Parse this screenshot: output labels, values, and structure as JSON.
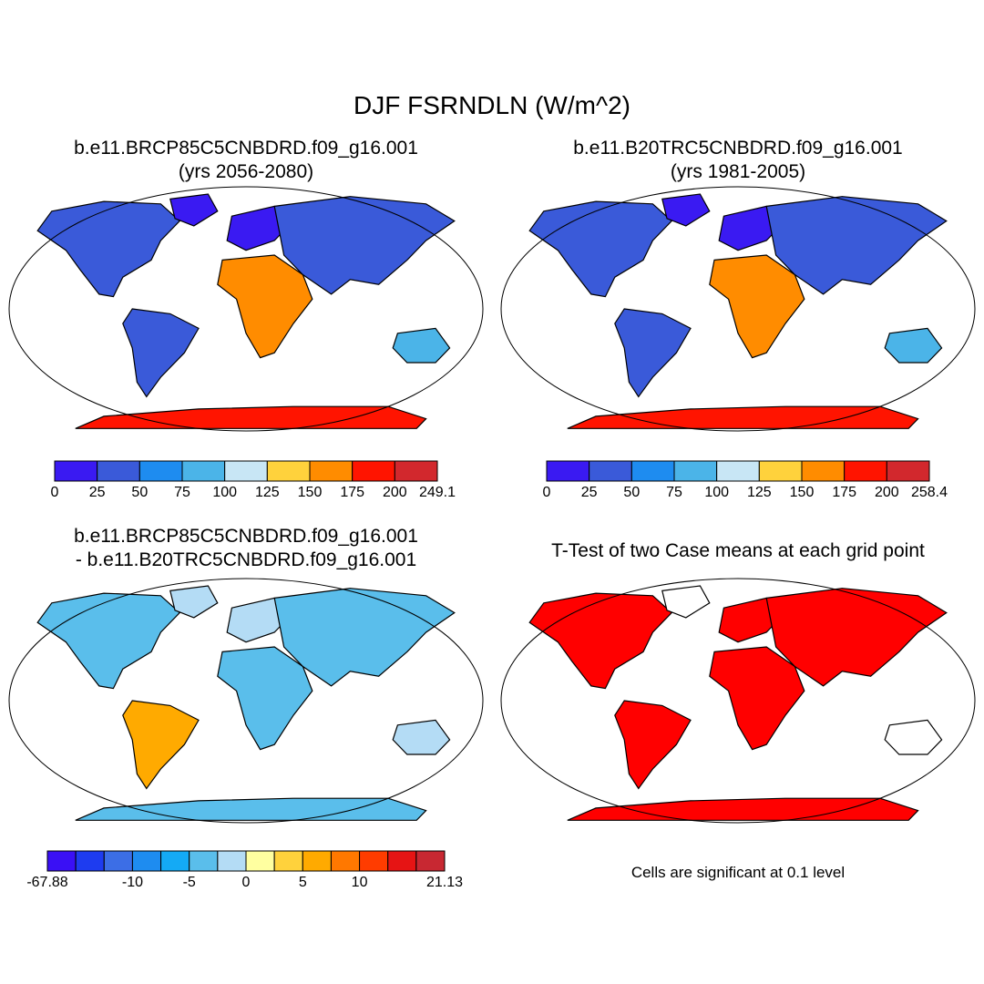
{
  "main_title": "DJF FSRNDLN (W/m^2)",
  "panels": [
    {
      "title_line1": "b.e11.BRCP85C5CNBDRD.f09_g16.001",
      "title_line2": "(yrs 2056-2080)",
      "colorbar": {
        "colors": [
          "#3a1af2",
          "#3a5ad9",
          "#1e8cf0",
          "#4bb4e8",
          "#c8e6f5",
          "#ffd23c",
          "#ff8c00",
          "#ff1400",
          "#d2282d"
        ],
        "labels": [
          "0",
          "25",
          "50",
          "75",
          "100",
          "125",
          "150",
          "175",
          "200",
          "249.1"
        ]
      }
    },
    {
      "title_line1": "b.e11.B20TRC5CNBDRD.f09_g16.001",
      "title_line2": "(yrs 1981-2005)",
      "colorbar": {
        "colors": [
          "#3a1af2",
          "#3a5ad9",
          "#1e8cf0",
          "#4bb4e8",
          "#c8e6f5",
          "#ffd23c",
          "#ff8c00",
          "#ff1400",
          "#d2282d"
        ],
        "labels": [
          "0",
          "25",
          "50",
          "75",
          "100",
          "125",
          "150",
          "175",
          "200",
          "258.4"
        ]
      }
    },
    {
      "title_line1": "b.e11.BRCP85C5CNBDRD.f09_g16.001",
      "title_line2": "- b.e11.B20TRC5CNBDRD.f09_g16.001",
      "colorbar": {
        "colors": [
          "#3a10f5",
          "#1e3cf0",
          "#3c6ee6",
          "#1e8cf0",
          "#14aaf5",
          "#5abeeb",
          "#b4dcf5",
          "#ffffa0",
          "#ffd23c",
          "#ffaa00",
          "#ff7800",
          "#ff3c00",
          "#e61414",
          "#c82832"
        ],
        "labels": [
          "-67.88",
          "-10",
          "-5",
          "0",
          "5",
          "10",
          "21.13"
        ]
      }
    },
    {
      "title_line1": "T-Test of two Case means at each grid point",
      "note": "Cells are significant at 0.1 level",
      "sig_color": "#ff0000"
    }
  ]
}
